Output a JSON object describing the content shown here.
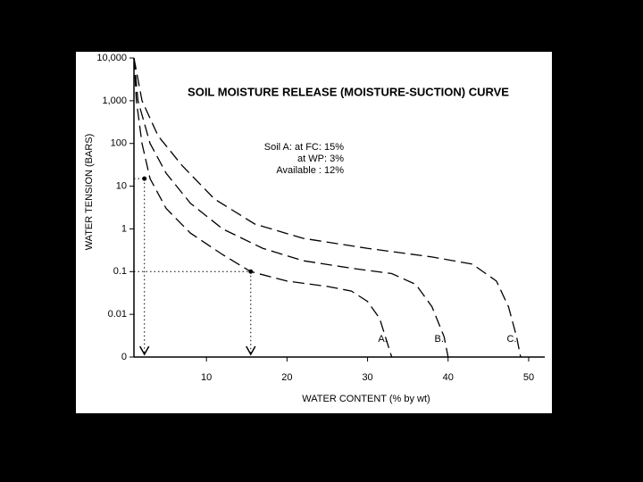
{
  "chart_data": {
    "type": "line",
    "title": "SOIL MOISTURE RELEASE (MOISTURE-SUCTION) CURVE",
    "xlabel": "WATER CONTENT (% by wt)",
    "ylabel": "WATER TENSION (BARS)",
    "annotations": [
      "Soil A:  at FC:  15%",
      "at WP:   3%",
      "Available :  12%"
    ],
    "log_y": true,
    "xlim": [
      1,
      52
    ],
    "ylim": [
      0.001,
      10000
    ],
    "xticks": [
      10,
      20,
      30,
      40,
      50
    ],
    "yticks": [
      {
        "value": 10000,
        "label": "10,000"
      },
      {
        "value": 1000,
        "label": "1,000"
      },
      100,
      10,
      1,
      0.1,
      0.01,
      {
        "value": 0.001,
        "label": "0"
      }
    ],
    "series": [
      {
        "name": "A.",
        "color": "#000000",
        "x": [
          1,
          1.3,
          2,
          3,
          5,
          8,
          12,
          15.5,
          20,
          25,
          28,
          30,
          31.5,
          32.5,
          33
        ],
        "values": [
          10000,
          1000,
          100,
          15,
          3,
          0.8,
          0.25,
          0.1,
          0.06,
          0.045,
          0.035,
          0.02,
          0.008,
          0.002,
          0.001
        ]
      },
      {
        "name": "B.",
        "color": "#000000",
        "x": [
          1,
          1.5,
          3,
          5,
          8,
          12,
          17,
          22,
          28,
          33,
          36,
          38,
          39.5,
          40
        ],
        "values": [
          10000,
          1000,
          100,
          20,
          4,
          1,
          0.35,
          0.18,
          0.12,
          0.09,
          0.05,
          0.015,
          0.003,
          0.001
        ]
      },
      {
        "name": "C.",
        "color": "#000000",
        "x": [
          1,
          2,
          4,
          7,
          11,
          16,
          22,
          30,
          38,
          43,
          46,
          47.5,
          48.5,
          49
        ],
        "values": [
          10000,
          1000,
          150,
          30,
          5,
          1.3,
          0.6,
          0.35,
          0.22,
          0.15,
          0.06,
          0.015,
          0.003,
          0.001
        ]
      }
    ],
    "markers": [
      {
        "x": 2.3,
        "y": 15
      },
      {
        "x": 15.5,
        "y": 0.1
      }
    ]
  }
}
